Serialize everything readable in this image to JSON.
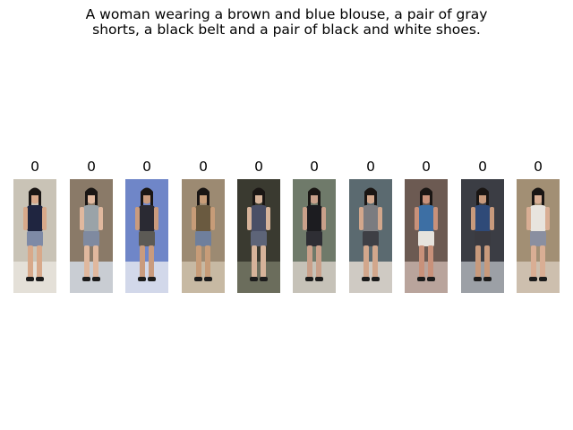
{
  "caption": {
    "line1": "A woman wearing a brown and blue blouse, a pair of gray",
    "line2": "shorts, a black belt and a pair of black and white shoes."
  },
  "results": [
    {
      "score": "0",
      "bg": "#c9c3b6",
      "floor": "#e4e0d8",
      "top": "#1f2540",
      "bottom": "#7e8aa6",
      "skin": "#d8a98a"
    },
    {
      "score": "0",
      "bg": "#8a7a68",
      "floor": "#c9cdd3",
      "top": "#9aa3a8",
      "bottom": "#7f8aa0",
      "skin": "#e0b89e"
    },
    {
      "score": "0",
      "bg": "#6f86c8",
      "floor": "#d2d8ea",
      "top": "#2a2a33",
      "bottom": "#5c5a55",
      "skin": "#c99b7e"
    },
    {
      "score": "0",
      "bg": "#9c8a72",
      "floor": "#c7b9a3",
      "top": "#6a5a40",
      "bottom": "#6f7f9c",
      "skin": "#c79c78"
    },
    {
      "score": "0",
      "bg": "#3a3a30",
      "floor": "#6b6d5c",
      "top": "#4a4f66",
      "bottom": "#5d6478",
      "skin": "#d6b39a"
    },
    {
      "score": "0",
      "bg": "#6f7a6a",
      "floor": "#c6c2b8",
      "top": "#1c1c20",
      "bottom": "#2e2e34",
      "skin": "#c9a08a"
    },
    {
      "score": "0",
      "bg": "#5b6a70",
      "floor": "#cfcac3",
      "top": "#7b7c80",
      "bottom": "#3e3f45",
      "skin": "#d2a78c"
    },
    {
      "score": "0",
      "bg": "#6c5a52",
      "floor": "#b9a49c",
      "top": "#3d6fa4",
      "bottom": "#e6e3dd",
      "skin": "#c8917a"
    },
    {
      "score": "0",
      "bg": "#3b3d44",
      "floor": "#9ca0a6",
      "top": "#2f4a78",
      "bottom": "#3a3a40",
      "skin": "#c89a7c"
    },
    {
      "score": "0",
      "bg": "#a28f74",
      "floor": "#cdbfae",
      "top": "#e8e4de",
      "bottom": "#8a8fa0",
      "skin": "#d9ae94"
    }
  ]
}
